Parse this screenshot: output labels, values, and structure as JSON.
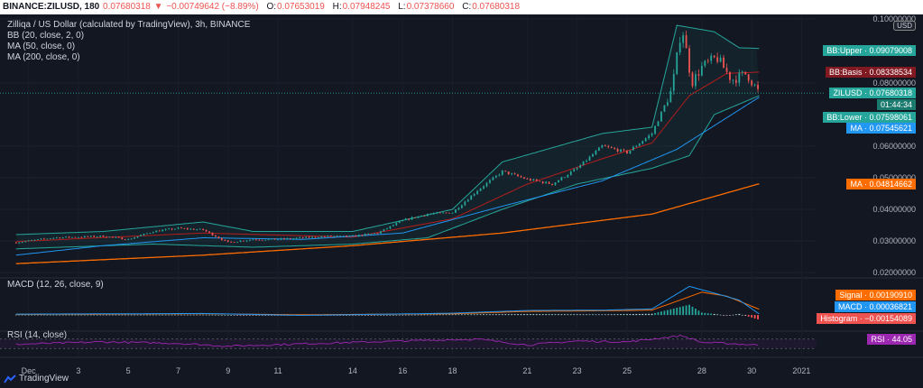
{
  "header": {
    "symbol": "BINANCE:ZILUSD, 180",
    "last": "0.07680318",
    "change": "−0.00749642 (−8.89%)",
    "o_label": "O:",
    "o": "0.07653019",
    "h_label": "H:",
    "h": "0.07948245",
    "l_label": "L:",
    "l": "0.07378660",
    "c_label": "C:",
    "c": "0.07680318"
  },
  "legend": {
    "title": "Zilliqa / US Dollar (calculated by TradingView), 3h, BINANCE",
    "bb": "BB (20, close, 2, 0)",
    "ma50": "MA (50, close, 0)",
    "ma200": "MA (200, close, 0)",
    "macd": "MACD (12, 26, close, 9)",
    "rsi": "RSI (14, close)"
  },
  "currency": "USD",
  "brand": "TradingView",
  "colors": {
    "up": "#26a69a",
    "down": "#ef5350",
    "bb": "#26a69a",
    "ma50": "#2196f3",
    "ma200": "#ff6d00",
    "basis": "#b71c1c",
    "rsi": "#9c27b0",
    "signal": "#ff6d00",
    "macd": "#2196f3"
  },
  "tags": {
    "bb_upper": "BB:Upper · 0.09079008",
    "bb_basis": "BB:Basis · 0.08338534",
    "price": "ZILUSD · 0.07680318",
    "countdown": "01:44:34",
    "bb_lower": "BB:Lower · 0.07598061",
    "ma50": "MA · 0.07545621",
    "ma200": "MA · 0.04814662",
    "signal": "Signal · 0.00190910",
    "macd": "MACD · 0.00036821",
    "histogram": "Histogram · −0.00154089",
    "rsi": "RSI · 44.05"
  },
  "chart_data": {
    "type": "candlestick",
    "y_axis_ticks": [
      "0.10000000",
      "0.08000000",
      "0.06000000",
      "0.05000000",
      "0.04000000",
      "0.03000000",
      "0.02000000"
    ],
    "y_ticks_values": [
      0.1,
      0.08,
      0.06,
      0.05,
      0.04,
      0.03,
      0.02
    ],
    "ylim": [
      0.018,
      0.102
    ],
    "x_tick_labels": [
      "Dec",
      "3",
      "5",
      "7",
      "9",
      "11",
      "14",
      "16",
      "18",
      "21",
      "23",
      "25",
      "28",
      "30",
      "2021"
    ],
    "x_tick_days": [
      1,
      3,
      5,
      7,
      9,
      11,
      14,
      16,
      18,
      21,
      23,
      25,
      28,
      30,
      32
    ],
    "x_range_days": [
      0,
      32.6
    ],
    "price_path": [
      [
        0.5,
        0.0295
      ],
      [
        2,
        0.031
      ],
      [
        4,
        0.0315
      ],
      [
        5,
        0.0305
      ],
      [
        6,
        0.033
      ],
      [
        7,
        0.034
      ],
      [
        8,
        0.0335
      ],
      [
        9,
        0.0295
      ],
      [
        10,
        0.0305
      ],
      [
        11,
        0.0305
      ],
      [
        12,
        0.031
      ],
      [
        13,
        0.0315
      ],
      [
        14,
        0.0315
      ],
      [
        15,
        0.0325
      ],
      [
        16,
        0.0365
      ],
      [
        17,
        0.0385
      ],
      [
        18,
        0.039
      ],
      [
        19,
        0.046
      ],
      [
        20,
        0.052
      ],
      [
        21,
        0.0495
      ],
      [
        22,
        0.048
      ],
      [
        23,
        0.053
      ],
      [
        24,
        0.06
      ],
      [
        25,
        0.058
      ],
      [
        26,
        0.064
      ],
      [
        26.8,
        0.078
      ],
      [
        27.2,
        0.098
      ],
      [
        27.6,
        0.08
      ],
      [
        28,
        0.085
      ],
      [
        28.6,
        0.088
      ],
      [
        29.2,
        0.081
      ],
      [
        29.8,
        0.083
      ],
      [
        30.3,
        0.0768
      ]
    ],
    "series": [
      {
        "name": "MA (50, close, 0)",
        "values": [
          [
            0.5,
            0.0255
          ],
          [
            4,
            0.0285
          ],
          [
            8,
            0.031
          ],
          [
            12,
            0.0305
          ],
          [
            16,
            0.0325
          ],
          [
            20,
            0.041
          ],
          [
            24,
            0.049
          ],
          [
            27,
            0.059
          ],
          [
            29,
            0.069
          ],
          [
            30.3,
            0.0755
          ]
        ]
      },
      {
        "name": "MA (200, close, 0)",
        "values": [
          [
            0.5,
            0.0228
          ],
          [
            8,
            0.0255
          ],
          [
            14,
            0.0285
          ],
          [
            20,
            0.0325
          ],
          [
            26,
            0.0385
          ],
          [
            30.3,
            0.0481
          ]
        ]
      },
      {
        "name": "BB:Upper",
        "values": [
          [
            0.5,
            0.032
          ],
          [
            4,
            0.033
          ],
          [
            8,
            0.036
          ],
          [
            10,
            0.033
          ],
          [
            14,
            0.033
          ],
          [
            18,
            0.04
          ],
          [
            20,
            0.055
          ],
          [
            24,
            0.064
          ],
          [
            26,
            0.066
          ],
          [
            27,
            0.098
          ],
          [
            28.5,
            0.096
          ],
          [
            29.5,
            0.091
          ],
          [
            30.3,
            0.0908
          ]
        ]
      },
      {
        "name": "BB:Basis",
        "values": [
          [
            0.5,
            0.0298
          ],
          [
            8,
            0.0325
          ],
          [
            14,
            0.0312
          ],
          [
            18,
            0.037
          ],
          [
            21,
            0.048
          ],
          [
            24,
            0.056
          ],
          [
            26,
            0.061
          ],
          [
            27.5,
            0.076
          ],
          [
            29,
            0.083
          ],
          [
            30.3,
            0.0834
          ]
        ]
      },
      {
        "name": "BB:Lower",
        "values": [
          [
            0.5,
            0.0275
          ],
          [
            6,
            0.029
          ],
          [
            10,
            0.028
          ],
          [
            14,
            0.029
          ],
          [
            17,
            0.031
          ],
          [
            20,
            0.04
          ],
          [
            23,
            0.048
          ],
          [
            26,
            0.053
          ],
          [
            27.5,
            0.057
          ],
          [
            28.5,
            0.07
          ],
          [
            30.3,
            0.076
          ]
        ]
      }
    ],
    "macd": {
      "ylim": [
        -0.005,
        0.011
      ],
      "macd_line": [
        [
          0.5,
          0.0003
        ],
        [
          8,
          0.0005
        ],
        [
          12,
          -0.0001
        ],
        [
          18,
          0.0006
        ],
        [
          21,
          0.0015
        ],
        [
          24,
          0.0016
        ],
        [
          26,
          0.002
        ],
        [
          27.5,
          0.0094
        ],
        [
          28.5,
          0.0072
        ],
        [
          29.5,
          0.0049
        ],
        [
          30.3,
          0.00037
        ]
      ],
      "signal_line": [
        [
          0.5,
          0.0002
        ],
        [
          8,
          0.0004
        ],
        [
          12,
          0.0001
        ],
        [
          18,
          0.0004
        ],
        [
          21,
          0.0012
        ],
        [
          24,
          0.0014
        ],
        [
          26,
          0.0016
        ],
        [
          28,
          0.0075
        ],
        [
          29,
          0.0062
        ],
        [
          30.3,
          0.0019
        ]
      ],
      "histogram_last": -0.00154089
    },
    "rsi": {
      "ylim": [
        0,
        100
      ],
      "bands": [
        30,
        70
      ],
      "values": [
        [
          0.5,
          48
        ],
        [
          4,
          58
        ],
        [
          7,
          52
        ],
        [
          9,
          40
        ],
        [
          12,
          50
        ],
        [
          16,
          62
        ],
        [
          19,
          70
        ],
        [
          21,
          45
        ],
        [
          23,
          62
        ],
        [
          25,
          58
        ],
        [
          27.2,
          85
        ],
        [
          28,
          56
        ],
        [
          29,
          52
        ],
        [
          30.3,
          44.05
        ]
      ]
    },
    "title": "Zilliqa / US Dollar (calculated by TradingView), 3h, BINANCE",
    "xlabel": "",
    "ylabel": ""
  }
}
